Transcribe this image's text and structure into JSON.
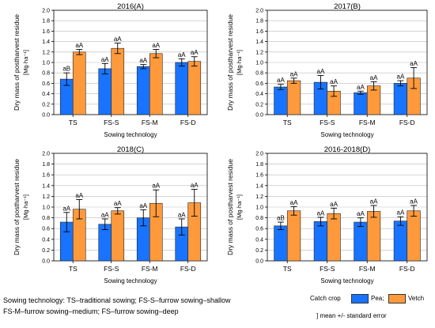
{
  "chart_data": [
    {
      "type": "bar",
      "title": "2016(A)",
      "xlabel": "Sowing technology",
      "ylabel": "Dry mass of postharvest residue",
      "yunit": "[Mg·ha⁻¹]",
      "ylim": [
        0,
        2.0
      ],
      "yticks": [
        "0.0",
        "0.2",
        "0.4",
        "0.6",
        "0.8",
        "1.0",
        "1.2",
        "1.4",
        "1.6",
        "1.8",
        "2.0"
      ],
      "categories": [
        "TS",
        "FS-S",
        "FS-M",
        "FS-D"
      ],
      "series": [
        {
          "name": "Pea",
          "values": [
            0.68,
            0.88,
            0.92,
            1.0
          ],
          "errors": [
            0.12,
            0.1,
            0.04,
            0.07
          ],
          "labels": [
            "aB",
            "aA",
            "aA",
            "aA"
          ]
        },
        {
          "name": "Vetch",
          "values": [
            1.2,
            1.27,
            1.17,
            1.02
          ],
          "errors": [
            0.05,
            0.1,
            0.08,
            0.09
          ],
          "labels": [
            "aA",
            "aA",
            "aA",
            "aA"
          ]
        }
      ]
    },
    {
      "type": "bar",
      "title": "2017(B)",
      "xlabel": "Sowing technology",
      "ylabel": "Dry mass of postharvest residue",
      "yunit": "[Mg·ha⁻¹]",
      "ylim": [
        0,
        2.0
      ],
      "yticks": [
        "0.0",
        "0.2",
        "0.4",
        "0.6",
        "0.8",
        "1.0",
        "1.2",
        "1.4",
        "1.6",
        "1.8",
        "2.0"
      ],
      "categories": [
        "TS",
        "FS-S",
        "FS-M",
        "FS-D"
      ],
      "series": [
        {
          "name": "Pea",
          "values": [
            0.53,
            0.62,
            0.42,
            0.6
          ],
          "errors": [
            0.05,
            0.13,
            0.03,
            0.05
          ],
          "labels": [
            "aA",
            "aA",
            "aA",
            "aA"
          ]
        },
        {
          "name": "Vetch",
          "values": [
            0.65,
            0.45,
            0.55,
            0.7
          ],
          "errors": [
            0.05,
            0.1,
            0.08,
            0.2
          ],
          "labels": [
            "aA",
            "aA",
            "aA",
            "aA"
          ]
        }
      ]
    },
    {
      "type": "bar",
      "title": "2018(C)",
      "xlabel": "Sowing technology",
      "ylabel": "Dry mass of postharvest residue",
      "yunit": "[Mg·ha⁻¹]",
      "ylim": [
        0,
        2.0
      ],
      "yticks": [
        "0.0",
        "0.2",
        "0.4",
        "0.6",
        "0.8",
        "1.0",
        "1.2",
        "1.4",
        "1.6",
        "1.8",
        "2.0"
      ],
      "categories": [
        "TS",
        "FS-S",
        "FS-M",
        "FS-D"
      ],
      "series": [
        {
          "name": "Pea",
          "values": [
            0.72,
            0.68,
            0.8,
            0.63
          ],
          "errors": [
            0.18,
            0.1,
            0.15,
            0.15
          ],
          "labels": [
            "aA",
            "aA",
            "aA",
            "aA"
          ]
        },
        {
          "name": "Vetch",
          "values": [
            0.96,
            0.93,
            1.07,
            1.08
          ],
          "errors": [
            0.18,
            0.06,
            0.25,
            0.25
          ],
          "labels": [
            "aA",
            "aA",
            "aA",
            "aA"
          ]
        }
      ]
    },
    {
      "type": "bar",
      "title": "2016-2018(D)",
      "xlabel": "Sowing technology",
      "ylabel": "Dry mass of postharvest residue",
      "yunit": "[Mg·ha⁻¹]",
      "ylim": [
        0,
        2.0
      ],
      "yticks": [
        "0.0",
        "0.2",
        "0.4",
        "0.6",
        "0.8",
        "1.0",
        "1.2",
        "1.4",
        "1.6",
        "1.8",
        "2.0"
      ],
      "categories": [
        "TS",
        "FS-S",
        "FS-M",
        "FS-D"
      ],
      "series": [
        {
          "name": "Pea",
          "values": [
            0.65,
            0.73,
            0.72,
            0.74
          ],
          "errors": [
            0.07,
            0.08,
            0.08,
            0.08
          ],
          "labels": [
            "aB",
            "aA",
            "aA",
            "aA"
          ]
        },
        {
          "name": "Vetch",
          "values": [
            0.93,
            0.88,
            0.92,
            0.93
          ],
          "errors": [
            0.08,
            0.1,
            0.11,
            0.1
          ],
          "labels": [
            "aA",
            "aA",
            "aA",
            "aA"
          ]
        }
      ]
    }
  ],
  "colors": {
    "pea": "#1874ff",
    "vetch": "#ff9a3c",
    "axis": "#000000",
    "grid": "#bbbbbb"
  },
  "caption": {
    "line1": "Sowing technology: TS–traditional sowing; FS-S–furrow sowing–shallow",
    "line2": "FS-M–furrow sowing–medium; FS–furrow sowing–deep"
  },
  "legend": {
    "title": "Catch crop",
    "pea_label": "Pea;",
    "vetch_label": "Vetch",
    "error_note": "] mean +/- standard error"
  }
}
